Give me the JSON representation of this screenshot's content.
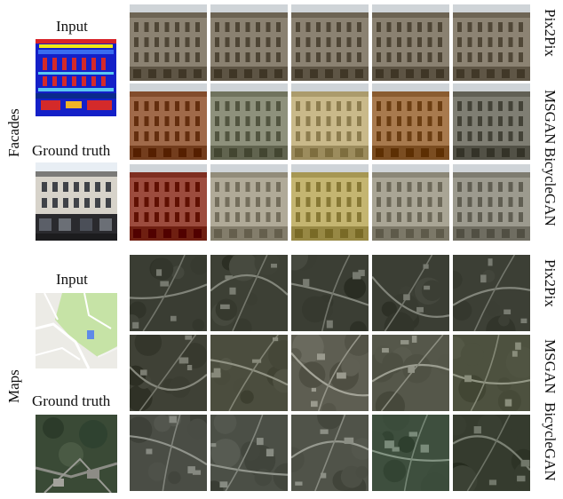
{
  "figure": {
    "facades": {
      "section_label": "Facades",
      "input_label": "Input",
      "ground_truth_label": "Ground truth",
      "row_labels": [
        "Pix2Pix",
        "MSGAN",
        "BicycleGAN"
      ]
    },
    "maps": {
      "section_label": "Maps",
      "input_label": "Input",
      "ground_truth_label": "Ground truth",
      "row_labels": [
        "Pix2Pix",
        "MSGAN",
        "BicycleGAN"
      ]
    }
  },
  "colors": {
    "facade_tones": [
      [
        "#8b8272",
        "#8a8171",
        "#8b8272",
        "#8a8171",
        "#8c8373"
      ],
      [
        "#a06a4a",
        "#8e917c",
        "#c9b98a",
        "#a87a4e",
        "#7f7e73"
      ],
      [
        "#9c4c3e",
        "#b0aa98",
        "#c4b571",
        "#a9a595",
        "#9c9a8e"
      ]
    ],
    "map_tones": [
      [
        "#3a3d33",
        "#3d4035",
        "#3b3e34",
        "#3b3e34",
        "#3c3f35"
      ],
      [
        "#3f4136",
        "#4b4d3e",
        "#5e5e52",
        "#55574a",
        "#4d513f"
      ],
      [
        "#4a4d45",
        "#4b4f46",
        "#505349",
        "#3e4f3e",
        "#353b2e"
      ]
    ]
  }
}
